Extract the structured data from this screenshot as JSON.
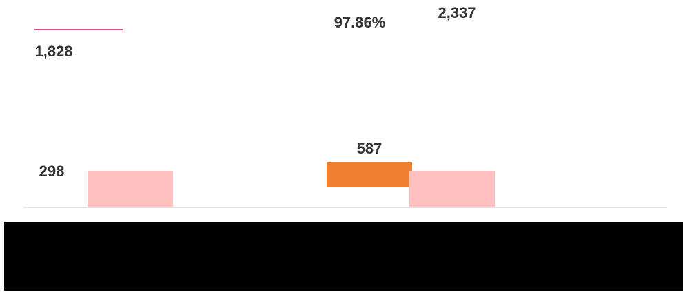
{
  "chart_data": {
    "type": "bar",
    "title": "",
    "xlabel": "",
    "ylabel": "",
    "categories": [
      "",
      "",
      "",
      ""
    ],
    "values": [
      298,
      1828,
      587,
      2337
    ],
    "data_labels": [
      "298",
      "1,828",
      "587",
      "2,337"
    ],
    "colors": [
      "#ffc0c0",
      "#ffffff",
      "#f08030",
      "#ffc0c0"
    ],
    "annotations": [
      "97.86%"
    ],
    "grid": false,
    "legend": "none"
  }
}
